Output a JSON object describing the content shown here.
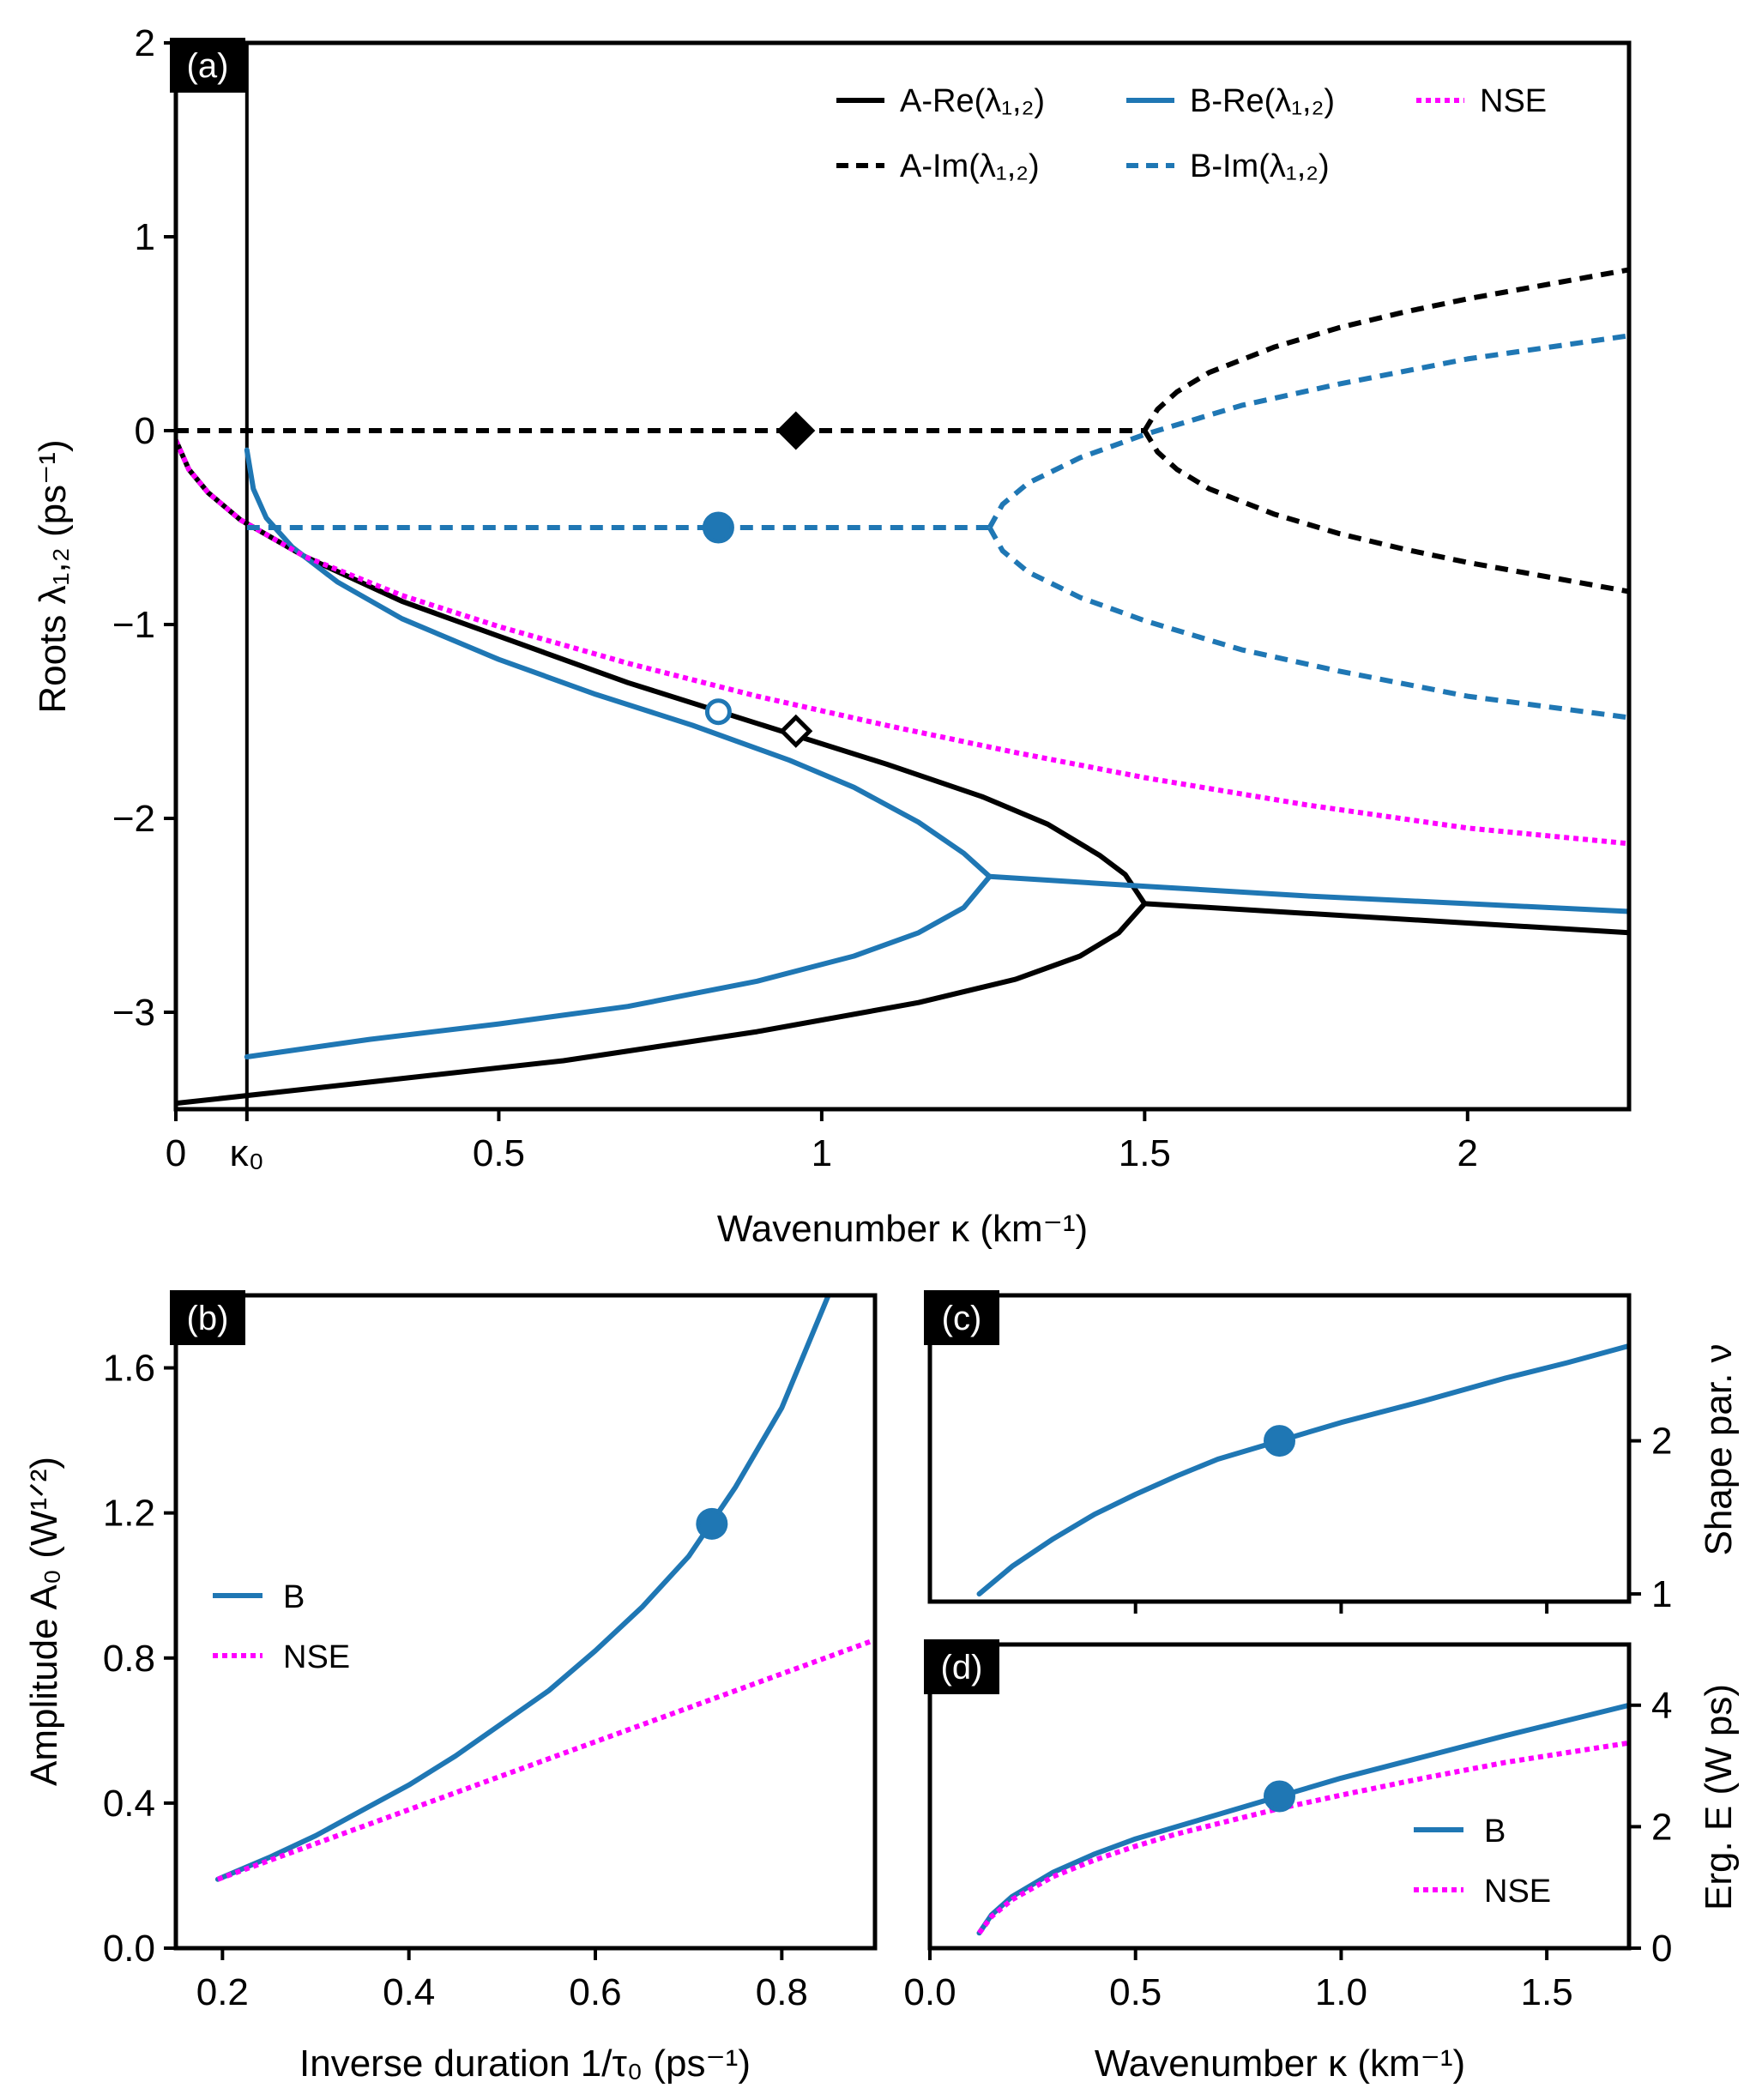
{
  "colors": {
    "black": "#000000",
    "blue": "#1f77b4",
    "magenta": "#ff00ff"
  },
  "chart_data": [
    {
      "id": "a",
      "panel_label": "(a)",
      "type": "line",
      "xlabel": "Wavenumber κ (km⁻¹)",
      "ylabel": "Roots λ₁,₂ (ps⁻¹)",
      "xlim": [
        0,
        2.25
      ],
      "ylim": [
        -3.5,
        2
      ],
      "xticks": [
        0,
        0.5,
        1,
        1.5,
        2
      ],
      "xtick_labels": [
        "0",
        "0.5",
        "1",
        "1.5",
        "2"
      ],
      "extra_xtick": {
        "value": 0.11,
        "label": "κ₀"
      },
      "yticks": [
        2,
        1,
        0,
        -1,
        -2,
        -3
      ],
      "ytick_labels": [
        "2",
        "1",
        "0",
        "−1",
        "−2",
        "−3"
      ],
      "vline_x": 0.11,
      "legend": [
        {
          "label": "A-Re(λ₁,₂)",
          "style": "solid",
          "color": "black"
        },
        {
          "label": "B-Re(λ₁,₂)",
          "style": "solid",
          "color": "blue"
        },
        {
          "label": "NSE",
          "style": "dotted",
          "color": "magenta"
        },
        {
          "label": "A-Im(λ₁,₂)",
          "style": "dashed",
          "color": "black"
        },
        {
          "label": "B-Im(λ₁,₂)",
          "style": "dashed",
          "color": "blue"
        }
      ],
      "series": [
        {
          "name": "A-Re upper",
          "style": "solid",
          "color": "black",
          "x": [
            0.0,
            0.02,
            0.05,
            0.1,
            0.2,
            0.35,
            0.5,
            0.7,
            0.9,
            1.1,
            1.25,
            1.35,
            1.43,
            1.47,
            1.5
          ],
          "y": [
            -0.05,
            -0.2,
            -0.32,
            -0.46,
            -0.65,
            -0.88,
            -1.06,
            -1.3,
            -1.51,
            -1.72,
            -1.89,
            -2.03,
            -2.19,
            -2.29,
            -2.44
          ]
        },
        {
          "name": "A-Re lower",
          "style": "solid",
          "color": "black",
          "x": [
            0.0,
            0.3,
            0.6,
            0.9,
            1.15,
            1.3,
            1.4,
            1.46,
            1.5
          ],
          "y": [
            -3.47,
            -3.36,
            -3.25,
            -3.1,
            -2.95,
            -2.83,
            -2.71,
            -2.59,
            -2.44
          ]
        },
        {
          "name": "A-Re merged",
          "style": "solid",
          "color": "black",
          "x": [
            1.5,
            1.75,
            2.0,
            2.25
          ],
          "y": [
            -2.44,
            -2.49,
            -2.54,
            -2.59
          ]
        },
        {
          "name": "B-Re upper",
          "style": "solid",
          "color": "blue",
          "x": [
            0.11,
            0.12,
            0.14,
            0.18,
            0.25,
            0.35,
            0.5,
            0.65,
            0.8,
            0.95,
            1.05,
            1.15,
            1.22,
            1.26
          ],
          "y": [
            -0.1,
            -0.3,
            -0.45,
            -0.6,
            -0.78,
            -0.97,
            -1.18,
            -1.36,
            -1.52,
            -1.7,
            -1.84,
            -2.02,
            -2.18,
            -2.3
          ]
        },
        {
          "name": "B-Re lower",
          "style": "solid",
          "color": "blue",
          "x": [
            0.11,
            0.3,
            0.5,
            0.7,
            0.9,
            1.05,
            1.15,
            1.22,
            1.26
          ],
          "y": [
            -3.23,
            -3.14,
            -3.06,
            -2.97,
            -2.84,
            -2.71,
            -2.59,
            -2.46,
            -2.3
          ]
        },
        {
          "name": "B-Re merged",
          "style": "solid",
          "color": "blue",
          "x": [
            1.26,
            1.5,
            1.75,
            2.0,
            2.25
          ],
          "y": [
            -2.3,
            -2.35,
            -2.4,
            -2.44,
            -2.48
          ]
        },
        {
          "name": "NSE",
          "style": "dotted",
          "color": "magenta",
          "x": [
            0.0,
            0.02,
            0.05,
            0.1,
            0.2,
            0.35,
            0.5,
            0.7,
            0.9,
            1.1,
            1.3,
            1.5,
            1.75,
            2.0,
            2.25
          ],
          "y": [
            -0.05,
            -0.2,
            -0.32,
            -0.46,
            -0.65,
            -0.85,
            -1.01,
            -1.2,
            -1.37,
            -1.52,
            -1.66,
            -1.79,
            -1.93,
            -2.05,
            -2.13
          ]
        },
        {
          "name": "A-Im zero",
          "style": "dashed",
          "color": "black",
          "x": [
            0.0,
            1.5
          ],
          "y": [
            0.0,
            0.0
          ]
        },
        {
          "name": "A-Im upper",
          "style": "dashed",
          "color": "black",
          "x": [
            1.5,
            1.52,
            1.55,
            1.6,
            1.7,
            1.8,
            1.9,
            2.0,
            2.1,
            2.25
          ],
          "y": [
            0.0,
            0.11,
            0.2,
            0.3,
            0.43,
            0.53,
            0.61,
            0.68,
            0.74,
            0.83
          ]
        },
        {
          "name": "A-Im lower",
          "style": "dashed",
          "color": "black",
          "x": [
            1.5,
            1.52,
            1.55,
            1.6,
            1.7,
            1.8,
            1.9,
            2.0,
            2.1,
            2.25
          ],
          "y": [
            0.0,
            -0.11,
            -0.2,
            -0.3,
            -0.43,
            -0.53,
            -0.61,
            -0.68,
            -0.74,
            -0.83
          ]
        },
        {
          "name": "B-Im flat",
          "style": "dashed",
          "color": "blue",
          "x": [
            0.11,
            1.26
          ],
          "y": [
            -0.5,
            -0.5
          ]
        },
        {
          "name": "B-Im upper",
          "style": "dashed",
          "color": "blue",
          "x": [
            1.26,
            1.28,
            1.32,
            1.4,
            1.5,
            1.65,
            1.8,
            2.0,
            2.25
          ],
          "y": [
            -0.5,
            -0.38,
            -0.27,
            -0.14,
            -0.02,
            0.13,
            0.24,
            0.37,
            0.49
          ]
        },
        {
          "name": "B-Im lower",
          "style": "dashed",
          "color": "blue",
          "x": [
            1.26,
            1.28,
            1.32,
            1.4,
            1.5,
            1.65,
            1.8,
            2.0,
            2.25
          ],
          "y": [
            -0.5,
            -0.62,
            -0.73,
            -0.86,
            -0.98,
            -1.13,
            -1.24,
            -1.37,
            -1.48
          ]
        }
      ],
      "markers": [
        {
          "name": "A-Im marker",
          "shape": "diamond",
          "filled": true,
          "color": "black",
          "x": 0.96,
          "y": 0.0
        },
        {
          "name": "B-Im marker",
          "shape": "circle",
          "filled": true,
          "color": "blue",
          "x": 0.84,
          "y": -0.5
        },
        {
          "name": "A-Re marker",
          "shape": "diamond",
          "filled": false,
          "color": "black",
          "x": 0.96,
          "y": -1.55
        },
        {
          "name": "B-Re marker",
          "shape": "circle",
          "filled": false,
          "color": "blue",
          "x": 0.84,
          "y": -1.45
        }
      ]
    },
    {
      "id": "b",
      "panel_label": "(b)",
      "type": "line",
      "xlabel": "Inverse duration 1/τ₀ (ps⁻¹)",
      "ylabel": "Amplitude A₀ (W¹ᐟ²)",
      "xlim": [
        0.15,
        0.9
      ],
      "ylim": [
        0,
        1.8
      ],
      "xticks": [
        0.2,
        0.4,
        0.6,
        0.8
      ],
      "xtick_labels": [
        "0.2",
        "0.4",
        "0.6",
        "0.8"
      ],
      "yticks": [
        0,
        0.4,
        0.8,
        1.2,
        1.6
      ],
      "ytick_labels": [
        "0.0",
        "0.4",
        "0.8",
        "1.2",
        "1.6"
      ],
      "legend": [
        {
          "label": "B",
          "style": "solid",
          "color": "blue"
        },
        {
          "label": "NSE",
          "style": "dotted",
          "color": "magenta"
        }
      ],
      "series": [
        {
          "name": "B",
          "style": "solid",
          "color": "blue",
          "x": [
            0.195,
            0.25,
            0.3,
            0.35,
            0.4,
            0.45,
            0.5,
            0.55,
            0.6,
            0.65,
            0.7,
            0.75,
            0.8,
            0.85
          ],
          "y": [
            0.19,
            0.25,
            0.31,
            0.38,
            0.45,
            0.53,
            0.62,
            0.71,
            0.82,
            0.94,
            1.08,
            1.27,
            1.49,
            1.8
          ]
        },
        {
          "name": "NSE",
          "style": "dotted",
          "color": "magenta",
          "x": [
            0.195,
            0.9
          ],
          "y": [
            0.19,
            0.85
          ]
        }
      ],
      "markers": [
        {
          "name": "B marker",
          "shape": "circle",
          "filled": true,
          "color": "blue",
          "x": 0.725,
          "y": 1.17
        }
      ]
    },
    {
      "id": "c",
      "panel_label": "(c)",
      "type": "line",
      "xlabel": "",
      "ylabel": "Shape par. ν",
      "xlim": [
        0,
        1.7
      ],
      "ylim": [
        0.95,
        2.95
      ],
      "xticks": [
        0.5,
        1.0,
        1.5
      ],
      "xtick_labels": [
        "",
        "",
        ""
      ],
      "yticks": [
        1,
        2
      ],
      "ytick_labels": [
        "1",
        "2"
      ],
      "series": [
        {
          "name": "B",
          "style": "solid",
          "color": "blue",
          "x": [
            0.12,
            0.2,
            0.3,
            0.4,
            0.5,
            0.6,
            0.7,
            0.85,
            1.0,
            1.2,
            1.4,
            1.55,
            1.7
          ],
          "y": [
            1.0,
            1.18,
            1.36,
            1.52,
            1.65,
            1.77,
            1.88,
            2.0,
            2.12,
            2.26,
            2.41,
            2.51,
            2.62
          ]
        }
      ],
      "markers": [
        {
          "name": "B marker",
          "shape": "circle",
          "filled": true,
          "color": "blue",
          "x": 0.85,
          "y": 2.0
        }
      ]
    },
    {
      "id": "d",
      "panel_label": "(d)",
      "type": "line",
      "xlabel": "Wavenumber κ (km⁻¹)",
      "ylabel": "Erg. E (W ps)",
      "xlim": [
        0,
        1.7
      ],
      "ylim": [
        0,
        5
      ],
      "xticks": [
        0.0,
        0.5,
        1.0,
        1.5
      ],
      "xtick_labels": [
        "0.0",
        "0.5",
        "1.0",
        "1.5"
      ],
      "yticks": [
        0,
        2,
        4
      ],
      "ytick_labels": [
        "0",
        "2",
        "4"
      ],
      "legend": [
        {
          "label": "B",
          "style": "solid",
          "color": "blue"
        },
        {
          "label": "NSE",
          "style": "dotted",
          "color": "magenta"
        }
      ],
      "series": [
        {
          "name": "B",
          "style": "solid",
          "color": "blue",
          "x": [
            0.12,
            0.15,
            0.2,
            0.3,
            0.4,
            0.5,
            0.6,
            0.7,
            0.85,
            1.0,
            1.2,
            1.4,
            1.55,
            1.7
          ],
          "y": [
            0.25,
            0.55,
            0.85,
            1.25,
            1.55,
            1.8,
            2.0,
            2.2,
            2.5,
            2.8,
            3.15,
            3.5,
            3.75,
            4.0
          ]
        },
        {
          "name": "NSE",
          "style": "dotted",
          "color": "magenta",
          "x": [
            0.12,
            0.15,
            0.2,
            0.3,
            0.4,
            0.5,
            0.6,
            0.7,
            0.85,
            1.0,
            1.2,
            1.4,
            1.55,
            1.7
          ],
          "y": [
            0.25,
            0.52,
            0.8,
            1.18,
            1.45,
            1.68,
            1.88,
            2.05,
            2.3,
            2.52,
            2.8,
            3.06,
            3.22,
            3.38
          ]
        }
      ],
      "markers": [
        {
          "name": "B marker",
          "shape": "circle",
          "filled": true,
          "color": "blue",
          "x": 0.85,
          "y": 2.5
        }
      ]
    }
  ]
}
